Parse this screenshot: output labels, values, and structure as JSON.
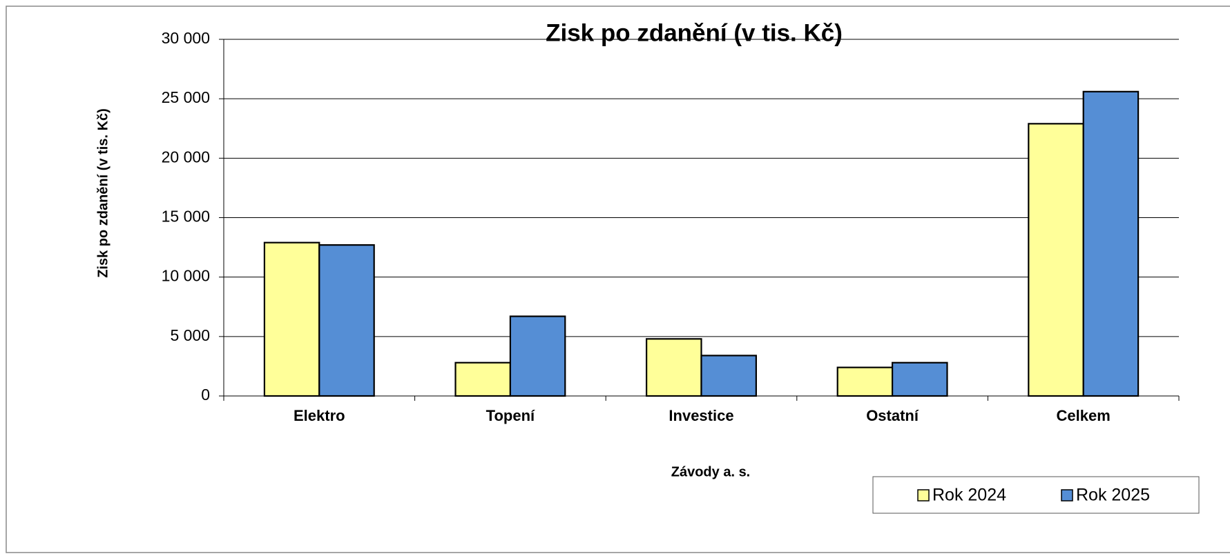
{
  "chart_data": {
    "type": "bar",
    "title": "Zisk po zdanění (v tis. Kč)",
    "y_label": "Zisk po zdanění (v tis. Kč)",
    "x_label": "Závody a. s.",
    "categories": [
      "Elektro",
      "Topení",
      "Investice",
      "Ostatní",
      "Celkem"
    ],
    "series": [
      {
        "name": "Rok 2024",
        "color": "#ffff99",
        "values": [
          12900,
          2800,
          4800,
          2400,
          22900
        ]
      },
      {
        "name": "Rok 2025",
        "color": "#558ed5",
        "values": [
          12700,
          6700,
          3400,
          2800,
          25600
        ]
      }
    ],
    "ylim": [
      0,
      30000
    ],
    "yticks": [
      0,
      {
        "value": 5000,
        "label": "5 000"
      },
      {
        "value": 10000,
        "label": "10 000"
      },
      {
        "value": 15000,
        "label": "15 000"
      },
      {
        "value": 20000,
        "label": "20 000"
      },
      {
        "value": 25000,
        "label": "25 000"
      },
      {
        "value": 30000,
        "label": "30 000"
      }
    ],
    "grid": true,
    "legend": "bottom-right"
  }
}
